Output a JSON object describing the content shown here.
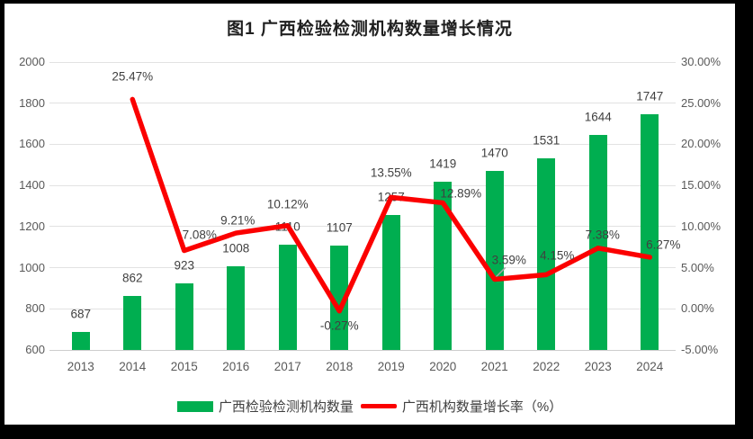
{
  "frame": {
    "border_color": "#000000",
    "background": "#ffffff"
  },
  "colors": {
    "bar_green": "#00AE50",
    "line_red": "#FB0000",
    "gridline": "#E2E2E2",
    "axis_text": "#595959",
    "data_label_text": "#404040",
    "title_text": "#1F1F1F",
    "leader_line": "#A6A6A6"
  },
  "chart_data": {
    "type": "bar",
    "subtype": "combo-bar-line-dual-axis",
    "title": "图1 广西检验检测机构数量增长情况",
    "categories": [
      "2013",
      "2014",
      "2015",
      "2016",
      "2017",
      "2018",
      "2019",
      "2020",
      "2021",
      "2022",
      "2023",
      "2024"
    ],
    "series": [
      {
        "name": "广西检验检测机构数量",
        "type": "bar",
        "axis": "left",
        "color": "#00AE50",
        "values": [
          687,
          862,
          923,
          1008,
          1110,
          1107,
          1257,
          1419,
          1470,
          1531,
          1644,
          1747
        ],
        "labels": [
          "687",
          "862",
          "923",
          "1008",
          "1110",
          "1107",
          "1257",
          "1419",
          "1470",
          "1531",
          "1644",
          "1747"
        ]
      },
      {
        "name": "广西机构数量增长率（%）",
        "type": "line",
        "axis": "right",
        "color": "#FB0000",
        "values": [
          null,
          25.47,
          7.08,
          9.21,
          10.12,
          -0.27,
          13.55,
          12.89,
          3.59,
          4.15,
          7.38,
          6.27
        ],
        "labels": [
          null,
          "25.47%",
          "7.08%",
          "9.21%",
          "10.12%",
          "-0.27%",
          "13.55%",
          "12.89%",
          "3.59%",
          "4.15%",
          "7.38%",
          "6.27%"
        ]
      }
    ],
    "left_axis": {
      "min": 600,
      "max": 2000,
      "step": 200,
      "ticks": [
        "600",
        "800",
        "1000",
        "1200",
        "1400",
        "1600",
        "1800",
        "2000"
      ]
    },
    "right_axis": {
      "min": -5,
      "max": 30,
      "step": 5,
      "ticks": [
        "-5.00%",
        "0.00%",
        "5.00%",
        "10.00%",
        "15.00%",
        "20.00%",
        "25.00%",
        "30.00%"
      ]
    },
    "grid": true,
    "legend_position": "bottom",
    "annotations": {
      "leader_line_category": "2021"
    }
  }
}
